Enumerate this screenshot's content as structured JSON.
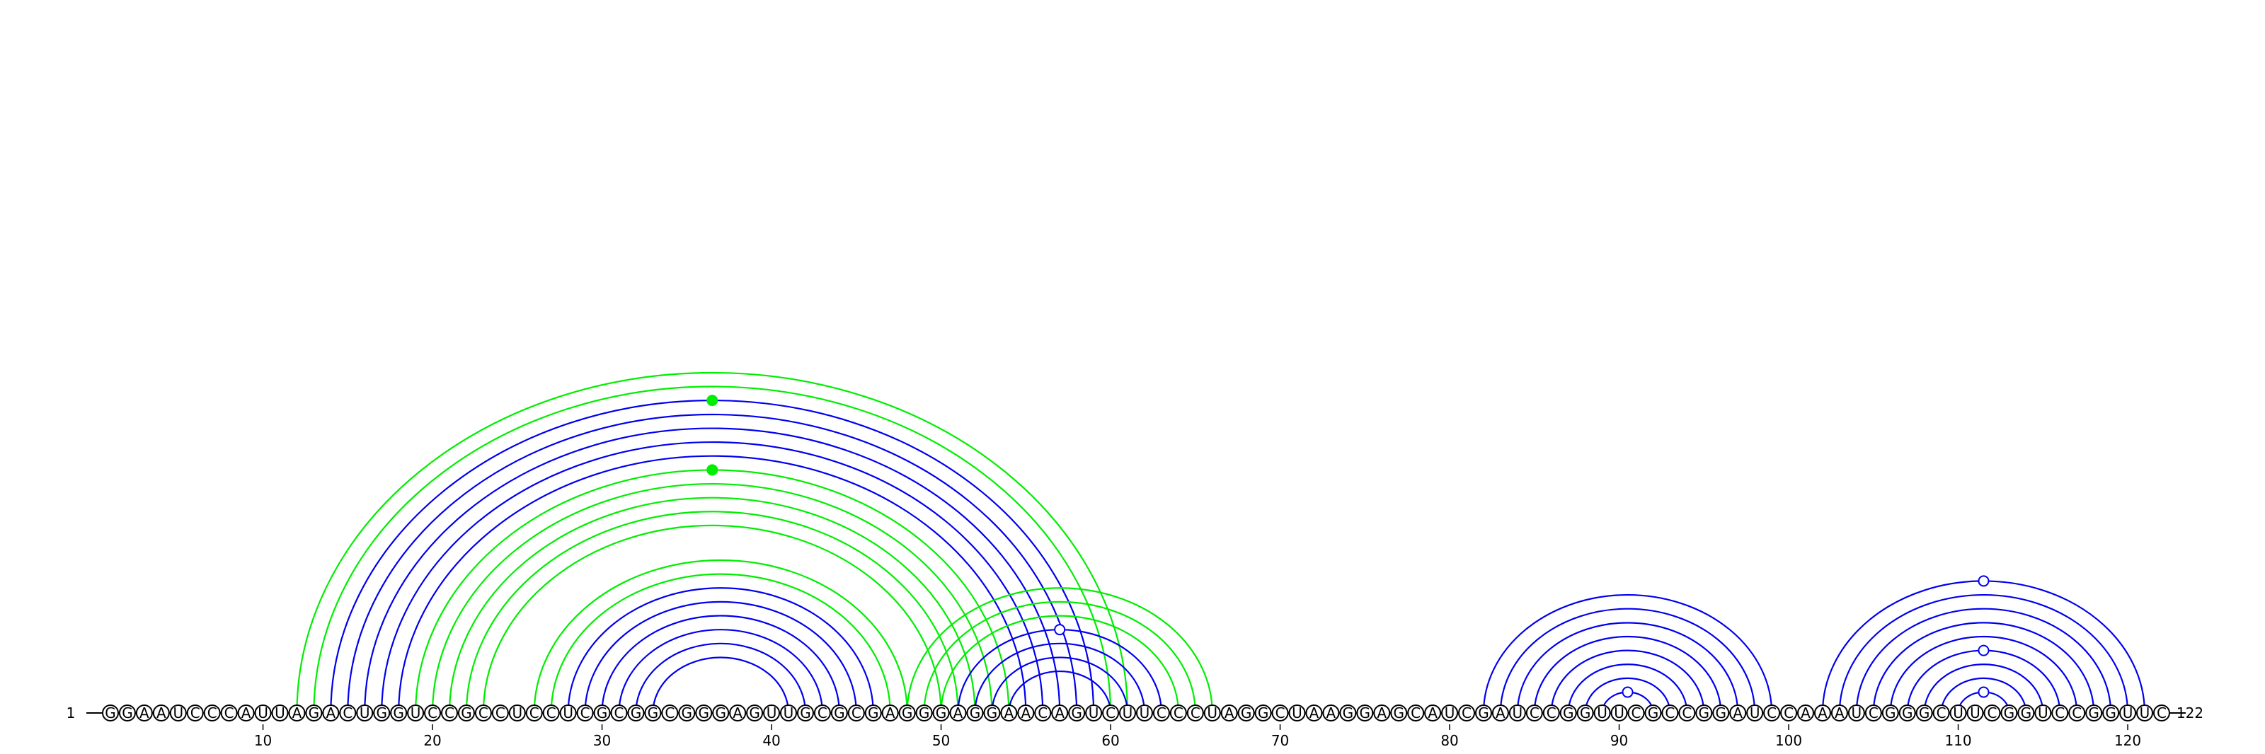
{
  "sequence": "GGAAUCCCAUUAGACUGGUCCGCCUCCUCGCGGCGGGAGUUGCGCGAGGGAGGAACAGUCUUCCCUAGGCUAAGGAGCAUCGAUCCGGUUCGCCGGAUCCAAAUCGGGCUUCGGUCCGGUUC",
  "length": 122,
  "start_label": "1",
  "end_label": "122",
  "ticks": [
    10,
    20,
    30,
    40,
    50,
    60,
    70,
    80,
    90,
    100,
    110,
    120
  ],
  "colors": {
    "blue": "#0000ee",
    "green": "#00ee00",
    "axis": "#000000"
  },
  "helices": [
    {
      "color": "blue",
      "pairs": [
        [
          14,
          59
        ],
        [
          15,
          58
        ],
        [
          16,
          57
        ],
        [
          17,
          56
        ],
        [
          18,
          55
        ]
      ]
    },
    {
      "color": "green",
      "pairs": [
        [
          12,
          61
        ],
        [
          13,
          60
        ]
      ]
    },
    {
      "color": "green",
      "pairs": [
        [
          19,
          54
        ],
        [
          20,
          53
        ]
      ]
    },
    {
      "color": "green",
      "pairs": [
        [
          21,
          52
        ],
        [
          22,
          51
        ],
        [
          23,
          50
        ]
      ]
    },
    {
      "color": "green",
      "pairs": [
        [
          26,
          48
        ],
        [
          27,
          47
        ]
      ]
    },
    {
      "color": "blue",
      "pairs": [
        [
          28,
          46
        ],
        [
          29,
          45
        ],
        [
          30,
          44
        ],
        [
          31,
          43
        ],
        [
          32,
          42
        ],
        [
          33,
          41
        ]
      ]
    },
    {
      "color": "green",
      "pairs": [
        [
          48,
          66
        ],
        [
          49,
          65
        ],
        [
          50,
          64
        ]
      ]
    },
    {
      "color": "blue",
      "pairs": [
        [
          51,
          63
        ],
        [
          52,
          62
        ],
        [
          53,
          61
        ],
        [
          54,
          60
        ]
      ]
    },
    {
      "color": "blue",
      "pairs": [
        [
          82,
          99
        ],
        [
          83,
          98
        ],
        [
          84,
          97
        ],
        [
          85,
          96
        ],
        [
          86,
          95
        ],
        [
          87,
          94
        ],
        [
          88,
          93
        ],
        [
          89,
          92
        ]
      ]
    },
    {
      "color": "blue",
      "pairs": [
        [
          102,
          121
        ],
        [
          103,
          120
        ],
        [
          104,
          119
        ],
        [
          105,
          118
        ],
        [
          106,
          117
        ],
        [
          107,
          116
        ],
        [
          108,
          115
        ],
        [
          109,
          114
        ],
        [
          110,
          113
        ]
      ]
    }
  ],
  "markers": [
    {
      "i": 14,
      "j": 59,
      "type": "filled",
      "color": "green"
    },
    {
      "i": 19,
      "j": 54,
      "type": "filled",
      "color": "green"
    },
    {
      "i": 51,
      "j": 63,
      "type": "open",
      "color": "blue"
    },
    {
      "i": 89,
      "j": 92,
      "type": "open",
      "color": "blue"
    },
    {
      "i": 102,
      "j": 121,
      "type": "open",
      "color": "blue"
    },
    {
      "i": 107,
      "j": 116,
      "type": "open",
      "color": "blue"
    },
    {
      "i": 110,
      "j": 113,
      "type": "open",
      "color": "blue"
    }
  ]
}
